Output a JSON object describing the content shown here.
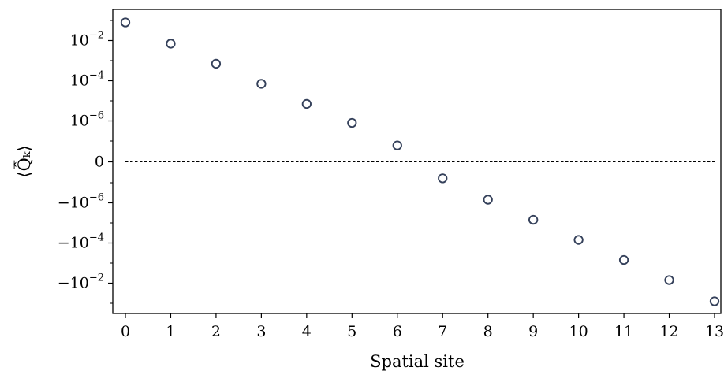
{
  "chart_data": {
    "type": "scatter",
    "title": "",
    "xlabel": "Spatial site",
    "ylabel": "⟨Q̂̅ₖ⟩",
    "scale": "symlog",
    "x_ticks": [
      0,
      1,
      2,
      3,
      4,
      5,
      6,
      7,
      8,
      9,
      10,
      11,
      12,
      13
    ],
    "y_ticks": [
      {
        "value": 0.01,
        "base": "10",
        "exp": "−2",
        "sign": ""
      },
      {
        "value": 0.0001,
        "base": "10",
        "exp": "−4",
        "sign": ""
      },
      {
        "value": 1e-06,
        "base": "10",
        "exp": "−6",
        "sign": ""
      },
      {
        "value": 0,
        "base": "0",
        "exp": "",
        "sign": ""
      },
      {
        "value": -1e-06,
        "base": "10",
        "exp": "−6",
        "sign": "−"
      },
      {
        "value": -0.0001,
        "base": "10",
        "exp": "−4",
        "sign": "−"
      },
      {
        "value": -0.01,
        "base": "10",
        "exp": "−2",
        "sign": "−"
      }
    ],
    "x": [
      0,
      1,
      2,
      3,
      4,
      5,
      6,
      7,
      8,
      9,
      10,
      11,
      12,
      13
    ],
    "y": [
      0.08,
      0.007,
      0.0007,
      7e-05,
      7e-06,
      8e-07,
      6e-08,
      -6e-08,
      -7e-07,
      -7e-06,
      -7e-05,
      -0.0007,
      -0.007,
      -0.08
    ],
    "marker": "open-circle",
    "marker_color": "#34405a",
    "zero_line": "dashed"
  }
}
